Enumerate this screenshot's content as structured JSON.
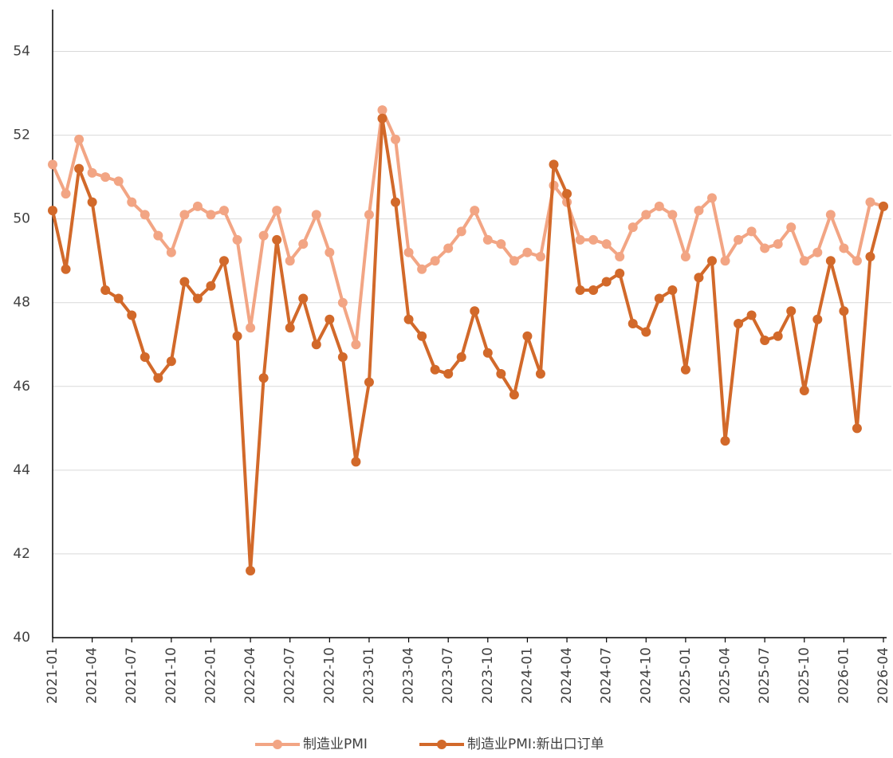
{
  "chart_data": {
    "type": "line",
    "categories": [
      "2021-01",
      null,
      null,
      "2021-04",
      null,
      null,
      "2021-07",
      null,
      null,
      "2021-10",
      null,
      null,
      "2022-01",
      null,
      null,
      "2022-04",
      null,
      null,
      "2022-07",
      null,
      null,
      "2022-10",
      null,
      null,
      "2023-01",
      null,
      null,
      "2023-04",
      null,
      null,
      "2023-07",
      null,
      null,
      "2023-10",
      null,
      null,
      "2024-01",
      null,
      null,
      "2024-04",
      null,
      null,
      "2024-07",
      null,
      null,
      "2024-10",
      null,
      null,
      "2025-01",
      null,
      null,
      "2025-04",
      null,
      null,
      "2025-07",
      null,
      null,
      "2025-10",
      null,
      null,
      "2026-01",
      null,
      null,
      "2026-04"
    ],
    "series": [
      {
        "name": "制造业PMI",
        "color": "#f2a584",
        "values": [
          51.3,
          50.6,
          51.9,
          51.1,
          51.0,
          50.9,
          50.4,
          50.1,
          49.6,
          49.2,
          50.1,
          50.3,
          50.1,
          50.2,
          49.5,
          47.4,
          49.6,
          50.2,
          49.0,
          49.4,
          50.1,
          49.2,
          48.0,
          47.0,
          50.1,
          52.6,
          51.9,
          49.2,
          48.8,
          49.0,
          49.3,
          49.7,
          50.2,
          49.5,
          49.4,
          49.0,
          49.2,
          49.1,
          50.8,
          50.4,
          49.5,
          49.5,
          49.4,
          49.1,
          49.8,
          50.1,
          50.3,
          50.1,
          49.1,
          50.2,
          50.5,
          49.0,
          49.5,
          49.7,
          49.3,
          49.4,
          49.8,
          49.0,
          49.2,
          50.1,
          49.3,
          49.0,
          50.4,
          50.3
        ]
      },
      {
        "name": "制造业PMI:新出口订单",
        "color": "#d2692a",
        "values": [
          50.2,
          48.8,
          51.2,
          50.4,
          48.3,
          48.1,
          47.7,
          46.7,
          46.2,
          46.6,
          48.5,
          48.1,
          48.4,
          49.0,
          47.2,
          41.6,
          46.2,
          49.5,
          47.4,
          48.1,
          47.0,
          47.6,
          46.7,
          44.2,
          46.1,
          52.4,
          50.4,
          47.6,
          47.2,
          46.4,
          46.3,
          46.7,
          47.8,
          46.8,
          46.3,
          45.8,
          47.2,
          46.3,
          51.3,
          50.6,
          48.3,
          48.3,
          48.5,
          48.7,
          47.5,
          47.3,
          48.1,
          48.3,
          46.4,
          48.6,
          49.0,
          44.7,
          47.5,
          47.7,
          47.1,
          47.2,
          47.8,
          45.9,
          47.6,
          49.0,
          47.8,
          45.0,
          49.1,
          50.3
        ]
      }
    ],
    "ylim": [
      40,
      55
    ],
    "yticks": [
      40,
      42,
      44,
      46,
      48,
      50,
      52,
      54
    ],
    "grid": true,
    "legend": "bottom"
  }
}
